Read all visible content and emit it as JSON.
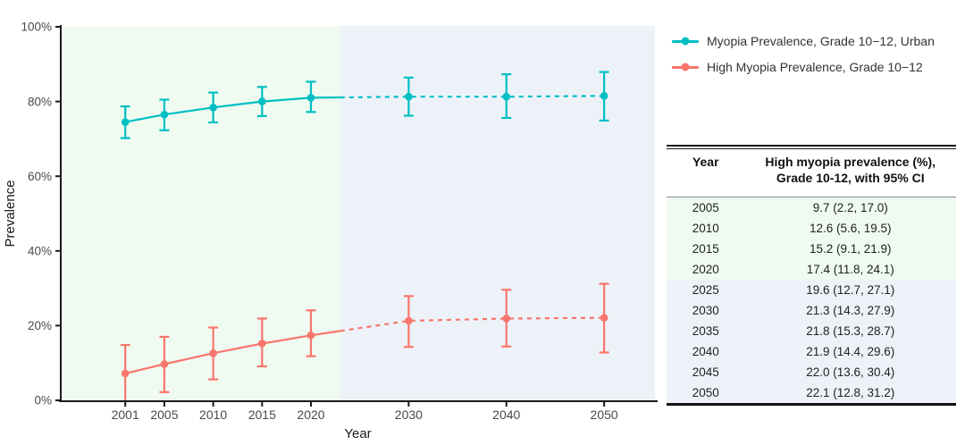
{
  "accent_colors": {
    "myopia_teal": "#00BFC4",
    "high_myopia_red": "#F8766D",
    "observed_bg": "#EFFBF0",
    "projected_bg": "#EDF2F8"
  },
  "legend": {
    "items": [
      {
        "label": "Myopia Prevalence, Grade 10−12, Urban",
        "color": "#00BFC4"
      },
      {
        "label": "High Myopia Prevalence, Grade 10−12",
        "color": "#F8766D"
      }
    ]
  },
  "table": {
    "columns": [
      "Year",
      "High myopia prevalence (%),\nGrade 10-12, with 95% CI"
    ],
    "rows": [
      [
        "2005",
        "9.7 (2.2, 17.0)",
        "observed"
      ],
      [
        "2010",
        "12.6 (5.6, 19.5)",
        "observed"
      ],
      [
        "2015",
        "15.2 (9.1, 21.9)",
        "observed"
      ],
      [
        "2020",
        "17.4 (11.8, 24.1)",
        "observed"
      ],
      [
        "2025",
        "19.6 (12.7, 27.1)",
        "projected"
      ],
      [
        "2030",
        "21.3 (14.3, 27.9)",
        "projected"
      ],
      [
        "2035",
        "21.8 (15.3, 28.7)",
        "projected"
      ],
      [
        "2040",
        "21.9 (14.4, 29.6)",
        "projected"
      ],
      [
        "2045",
        "22.0 (13.6, 30.4)",
        "projected"
      ],
      [
        "2050",
        "22.1 (12.8, 31.2)",
        "projected"
      ]
    ]
  },
  "chart_data": {
    "type": "line",
    "title": "",
    "xlabel": "Year",
    "ylabel": "Prevalence",
    "xlim": [
      1994.4,
      2055.2
    ],
    "ylim": [
      0,
      100
    ],
    "x_ticks": [
      2001,
      2005,
      2010,
      2015,
      2020,
      2030,
      2040,
      2050
    ],
    "y_ticks": [
      0,
      20,
      40,
      60,
      80,
      100
    ],
    "y_tick_labels": [
      "0%",
      "20%",
      "40%",
      "60%",
      "80%",
      "100%"
    ],
    "grid": false,
    "legend_position": "top-right-outside",
    "forecast_start": 2023,
    "regions": [
      {
        "name": "observed-region",
        "from": 1994.4,
        "to": 2023,
        "color": "#EFFBF0"
      },
      {
        "name": "projected-region",
        "from": 2023,
        "to": 2055.2,
        "color": "#EDF2F8"
      }
    ],
    "series": [
      {
        "name": "Myopia Prevalence, Grade 10−12, Urban",
        "color": "#00BFC4",
        "x": [
          2001,
          2005,
          2010,
          2015,
          2020,
          2030,
          2040,
          2050
        ],
        "y": [
          74.5,
          76.5,
          78.4,
          80.0,
          81.0,
          81.3,
          81.3,
          81.5
        ],
        "ci_low": [
          70.2,
          72.3,
          74.4,
          76.1,
          77.2,
          76.2,
          75.6,
          74.9
        ],
        "ci_high": [
          78.7,
          80.5,
          82.4,
          83.9,
          85.3,
          86.4,
          87.3,
          87.9
        ]
      },
      {
        "name": "High Myopia Prevalence, Grade 10−12",
        "color": "#F8766D",
        "x": [
          2001,
          2005,
          2010,
          2015,
          2020,
          2030,
          2040,
          2050
        ],
        "y": [
          7.2,
          9.7,
          12.6,
          15.2,
          17.4,
          21.3,
          21.9,
          22.1
        ],
        "ci_low": [
          -0.4,
          2.2,
          5.6,
          9.1,
          11.8,
          14.3,
          14.4,
          12.8
        ],
        "ci_high": [
          14.8,
          17.0,
          19.5,
          21.9,
          24.1,
          27.9,
          29.6,
          31.2
        ]
      }
    ]
  }
}
